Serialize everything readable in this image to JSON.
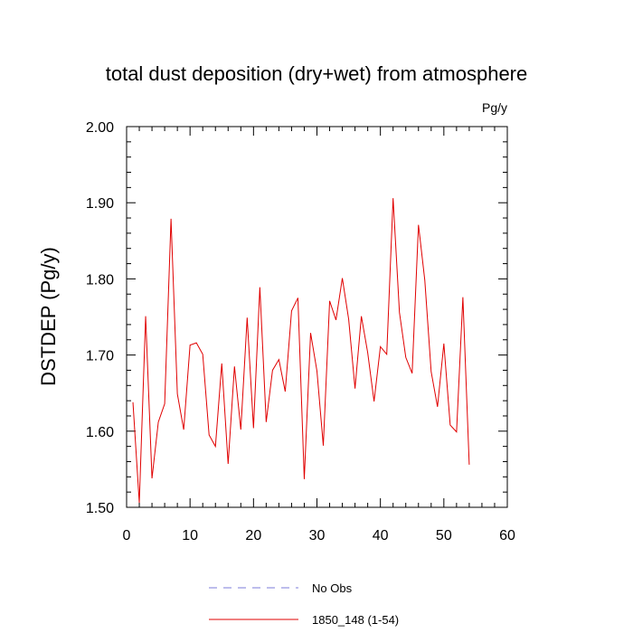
{
  "chart_data": {
    "type": "line",
    "title": "total dust deposition (dry+wet) from atmosphere",
    "units_label": "Pg/y",
    "ylabel": "DSTDEP  (Pg/y)",
    "xlabel": "",
    "xlim": [
      0,
      60
    ],
    "ylim": [
      1.5,
      2.0
    ],
    "xticks": [
      "0",
      "10",
      "20",
      "30",
      "40",
      "50",
      "60"
    ],
    "yticks": [
      "1.50",
      "1.60",
      "1.70",
      "1.80",
      "1.90",
      "2.00"
    ],
    "grid": false,
    "legend_position": "bottom-center",
    "series": [
      {
        "name": "No Obs",
        "color": "#7b7bd8",
        "style": "dashed",
        "values": []
      },
      {
        "name": "1850_148 (1-54)",
        "color": "#e00000",
        "style": "solid",
        "x": [
          1,
          2,
          3,
          4,
          5,
          6,
          7,
          8,
          9,
          10,
          11,
          12,
          13,
          14,
          15,
          16,
          17,
          18,
          19,
          20,
          21,
          22,
          23,
          24,
          25,
          26,
          27,
          28,
          29,
          30,
          31,
          32,
          33,
          34,
          35,
          36,
          37,
          38,
          39,
          40,
          41,
          42,
          43,
          44,
          45,
          46,
          47,
          48,
          49,
          50,
          51,
          52,
          53,
          54
        ],
        "values": [
          1.638,
          1.506,
          1.751,
          1.538,
          1.612,
          1.636,
          1.879,
          1.649,
          1.602,
          1.713,
          1.716,
          1.701,
          1.595,
          1.58,
          1.689,
          1.557,
          1.685,
          1.602,
          1.749,
          1.604,
          1.789,
          1.612,
          1.68,
          1.694,
          1.652,
          1.758,
          1.775,
          1.537,
          1.729,
          1.679,
          1.581,
          1.771,
          1.746,
          1.801,
          1.747,
          1.656,
          1.751,
          1.703,
          1.639,
          1.711,
          1.701,
          1.906,
          1.756,
          1.697,
          1.676,
          1.871,
          1.798,
          1.678,
          1.632,
          1.715,
          1.608,
          1.599,
          1.776,
          1.556
        ]
      }
    ]
  }
}
